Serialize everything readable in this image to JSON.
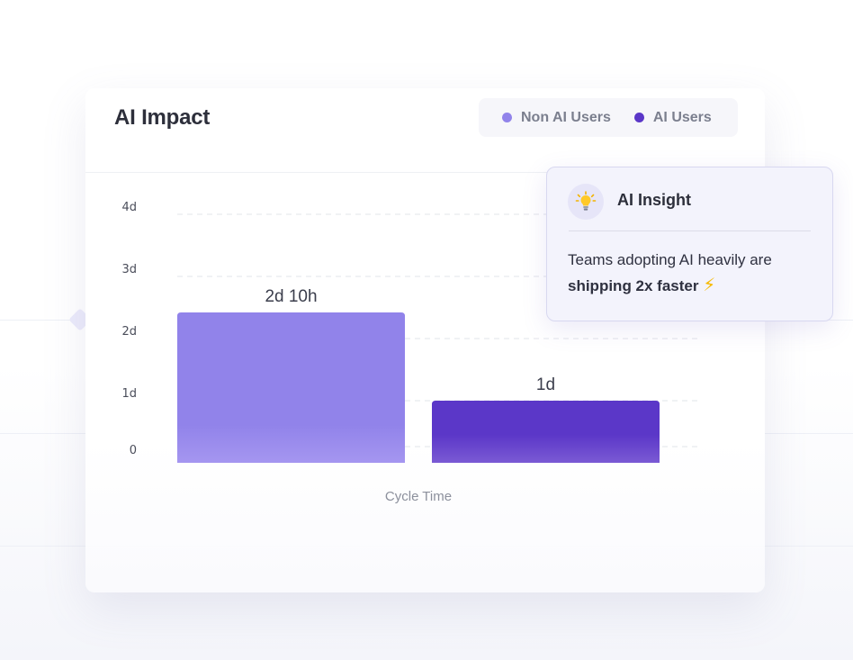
{
  "card": {
    "title": "AI Impact"
  },
  "legend": [
    {
      "label": "Non AI Users",
      "color": "#9183ea"
    },
    {
      "label": "AI Users",
      "color": "#5b37c8"
    }
  ],
  "chart_data": {
    "type": "bar",
    "title": "AI Impact",
    "xlabel": "Cycle Time",
    "ylabel": "",
    "y_unit": "days",
    "y_ticks": [
      "0",
      "1d",
      "2d",
      "3d",
      "4d"
    ],
    "ylim": [
      0,
      4
    ],
    "grid": true,
    "legend_position": "top-right",
    "categories": [
      "Cycle Time"
    ],
    "series": [
      {
        "name": "Non AI Users",
        "values": [
          2.42
        ],
        "value_label": "2d 10h",
        "color": "#9183ea"
      },
      {
        "name": "AI Users",
        "values": [
          1
        ],
        "value_label": "1d",
        "color": "#5b37c8"
      }
    ]
  },
  "insight": {
    "icon": "lightbulb-icon",
    "title": "AI Insight",
    "text": "Teams adopting AI heavily are",
    "text_bold": "shipping 2x faster",
    "emoji": "⚡"
  }
}
